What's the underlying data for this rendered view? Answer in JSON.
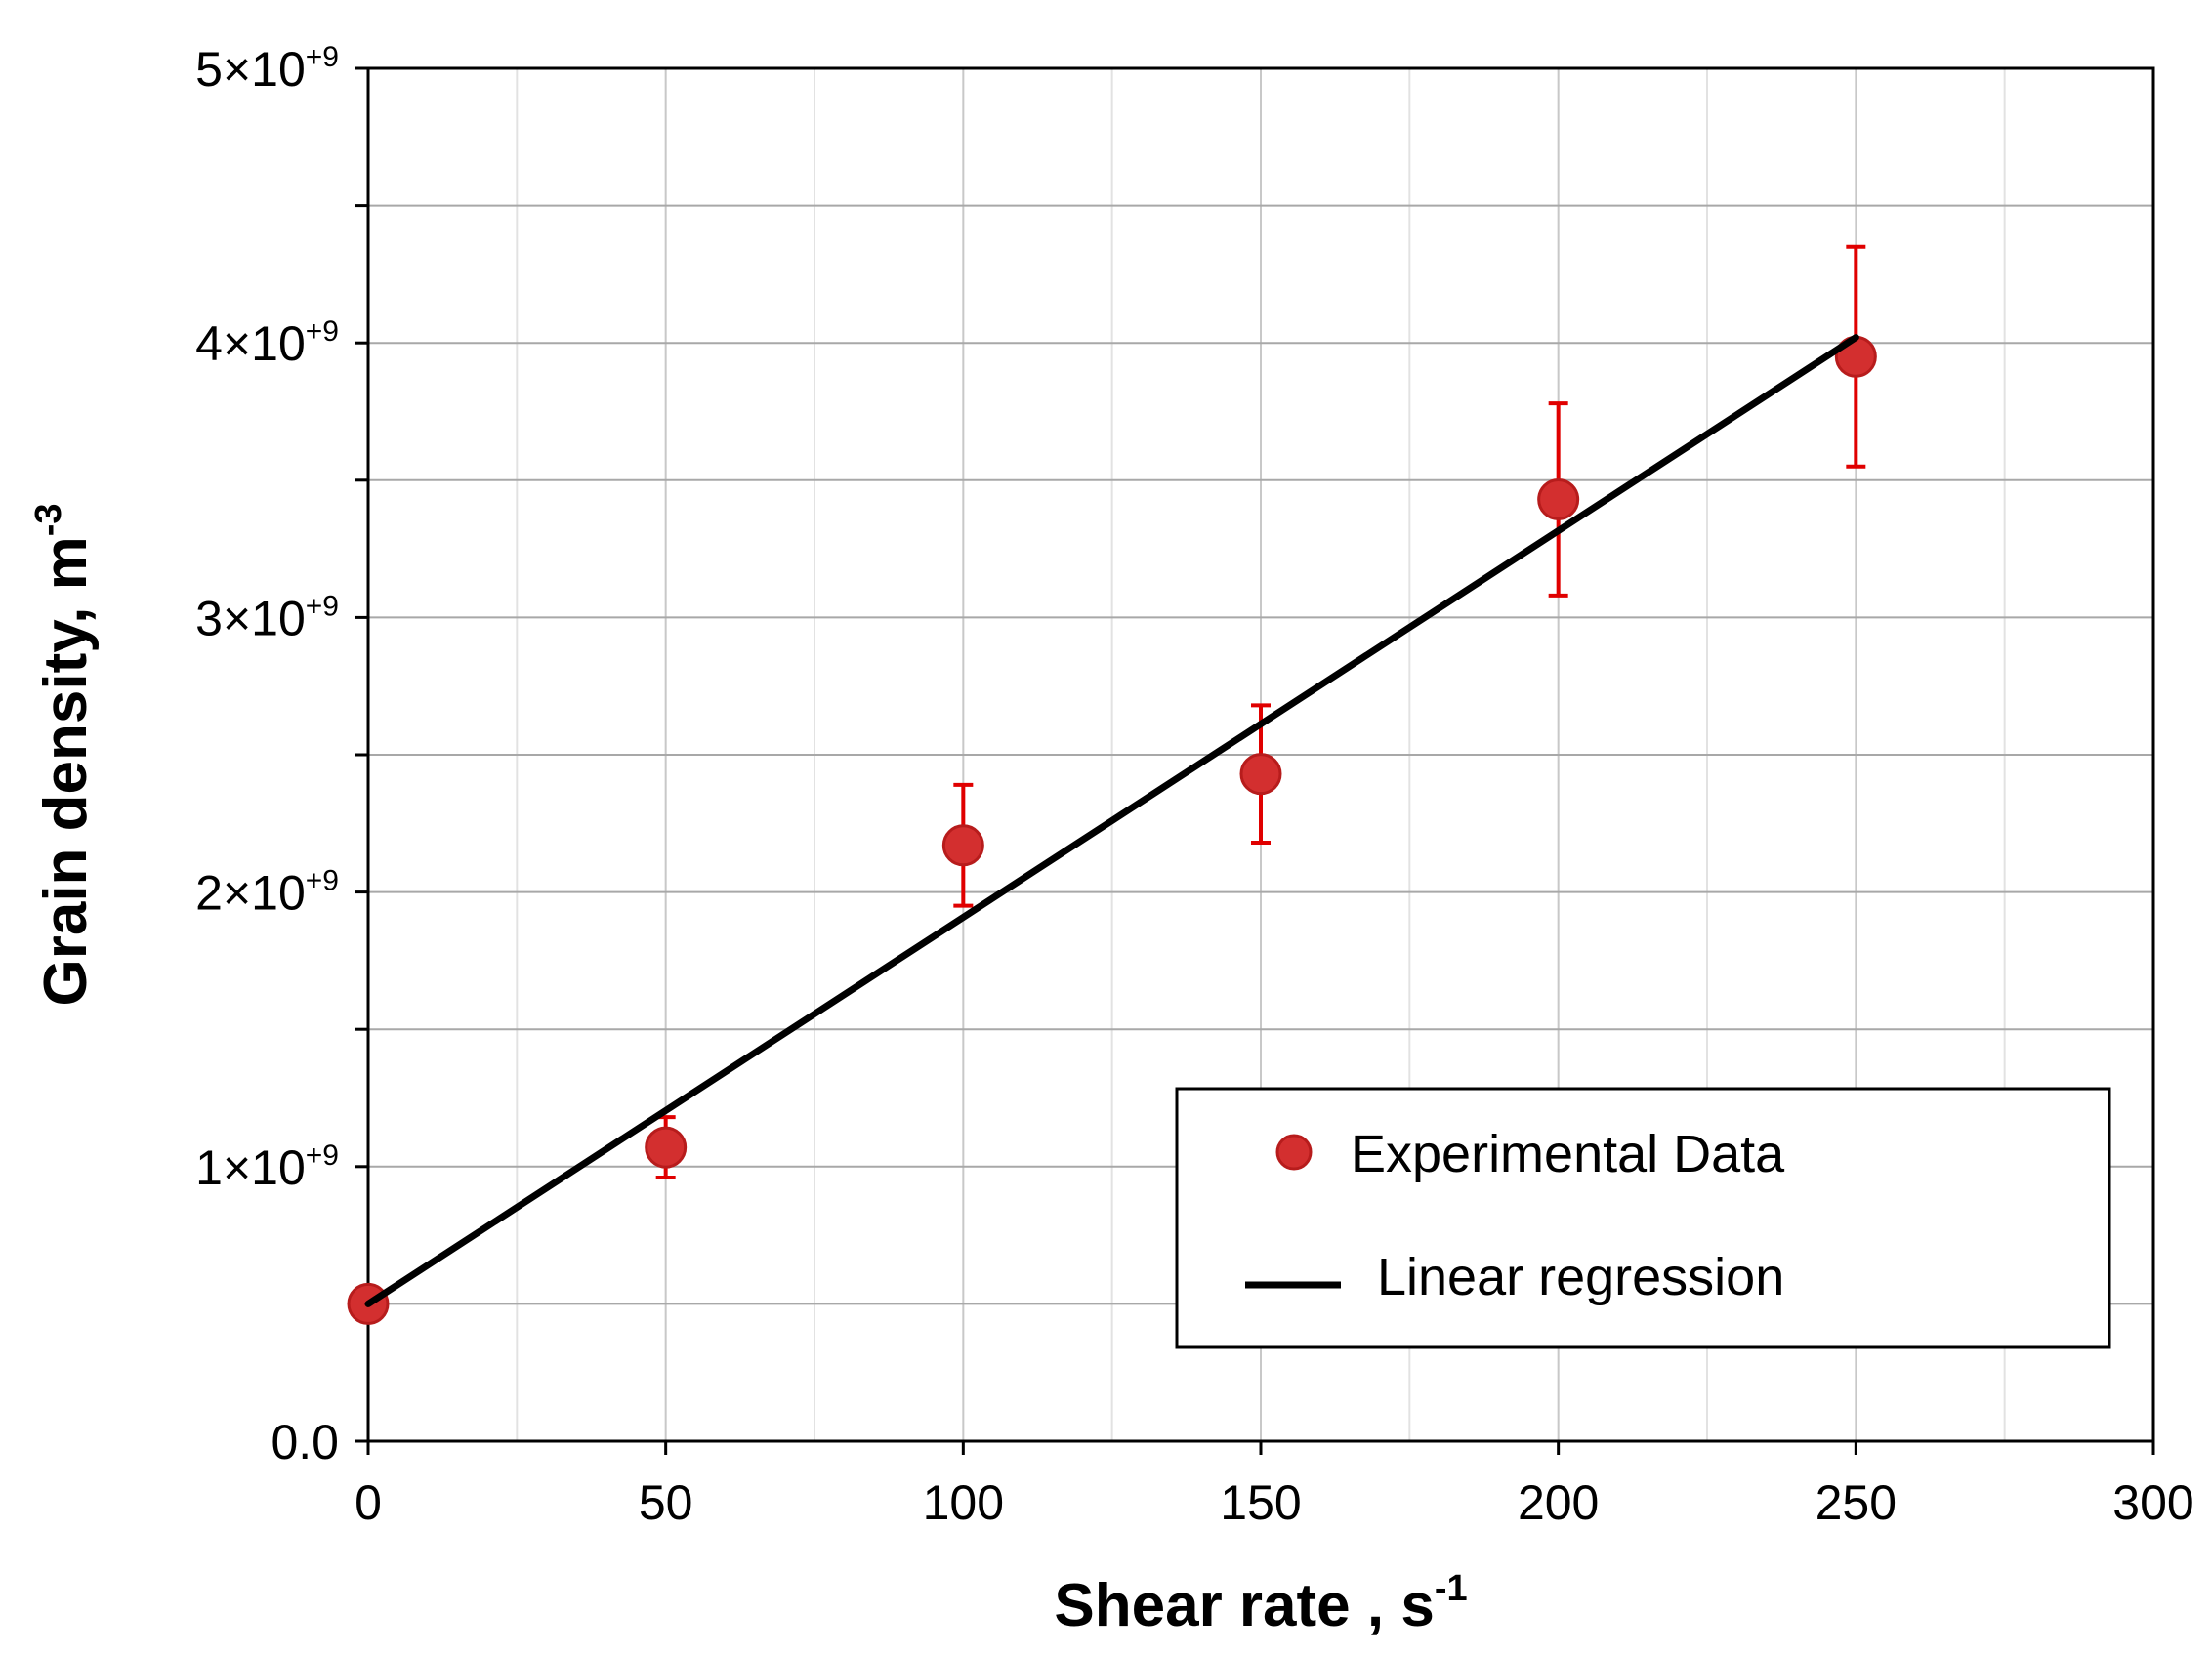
{
  "chart_data": {
    "type": "scatter",
    "title": "",
    "xlabel": "Shear rate , s",
    "xlabel_sup": "-1",
    "ylabel": "Grain density, m",
    "ylabel_sup": "-3",
    "xlim": [
      0,
      300
    ],
    "ylim": [
      0,
      5000000000
    ],
    "x_ticks": [
      {
        "value": 0,
        "label": "0"
      },
      {
        "value": 50,
        "label": "50"
      },
      {
        "value": 100,
        "label": "100"
      },
      {
        "value": 150,
        "label": "150"
      },
      {
        "value": 200,
        "label": "200"
      },
      {
        "value": 250,
        "label": "250"
      },
      {
        "value": 300,
        "label": "300"
      }
    ],
    "y_ticks": [
      {
        "value": 0,
        "base": "0.0",
        "sup": ""
      },
      {
        "value": 1000000000,
        "base": "1×10",
        "sup": "+9"
      },
      {
        "value": 2000000000,
        "base": "2×10",
        "sup": "+9"
      },
      {
        "value": 3000000000,
        "base": "3×10",
        "sup": "+9"
      },
      {
        "value": 4000000000,
        "base": "4×10",
        "sup": "+9"
      },
      {
        "value": 5000000000,
        "base": "5×10",
        "sup": "+9"
      }
    ],
    "y_minor_grid_step": 500000000,
    "x_minor_grid_step": 25,
    "grid": true,
    "series": [
      {
        "name": "Experimental Data",
        "kind": "scatter",
        "color": "#d32f2f",
        "edge_color": "#b71c1c",
        "error_color": "#e00000",
        "points": [
          {
            "x": 0,
            "y": 500000000,
            "err": 0
          },
          {
            "x": 50,
            "y": 1070000000,
            "err": 110000000
          },
          {
            "x": 100,
            "y": 2170000000,
            "err": 220000000
          },
          {
            "x": 150,
            "y": 2430000000,
            "err": 250000000
          },
          {
            "x": 200,
            "y": 3430000000,
            "err": 350000000
          },
          {
            "x": 250,
            "y": 3950000000,
            "err": 400000000
          }
        ]
      },
      {
        "name": "Linear regression",
        "kind": "line",
        "color": "#000000",
        "points": [
          {
            "x": 0,
            "y": 500000000
          },
          {
            "x": 250,
            "y": 4020000000
          }
        ]
      }
    ],
    "legend": {
      "position": "lower-right",
      "entries": [
        "Experimental Data",
        "Linear regression"
      ]
    }
  }
}
